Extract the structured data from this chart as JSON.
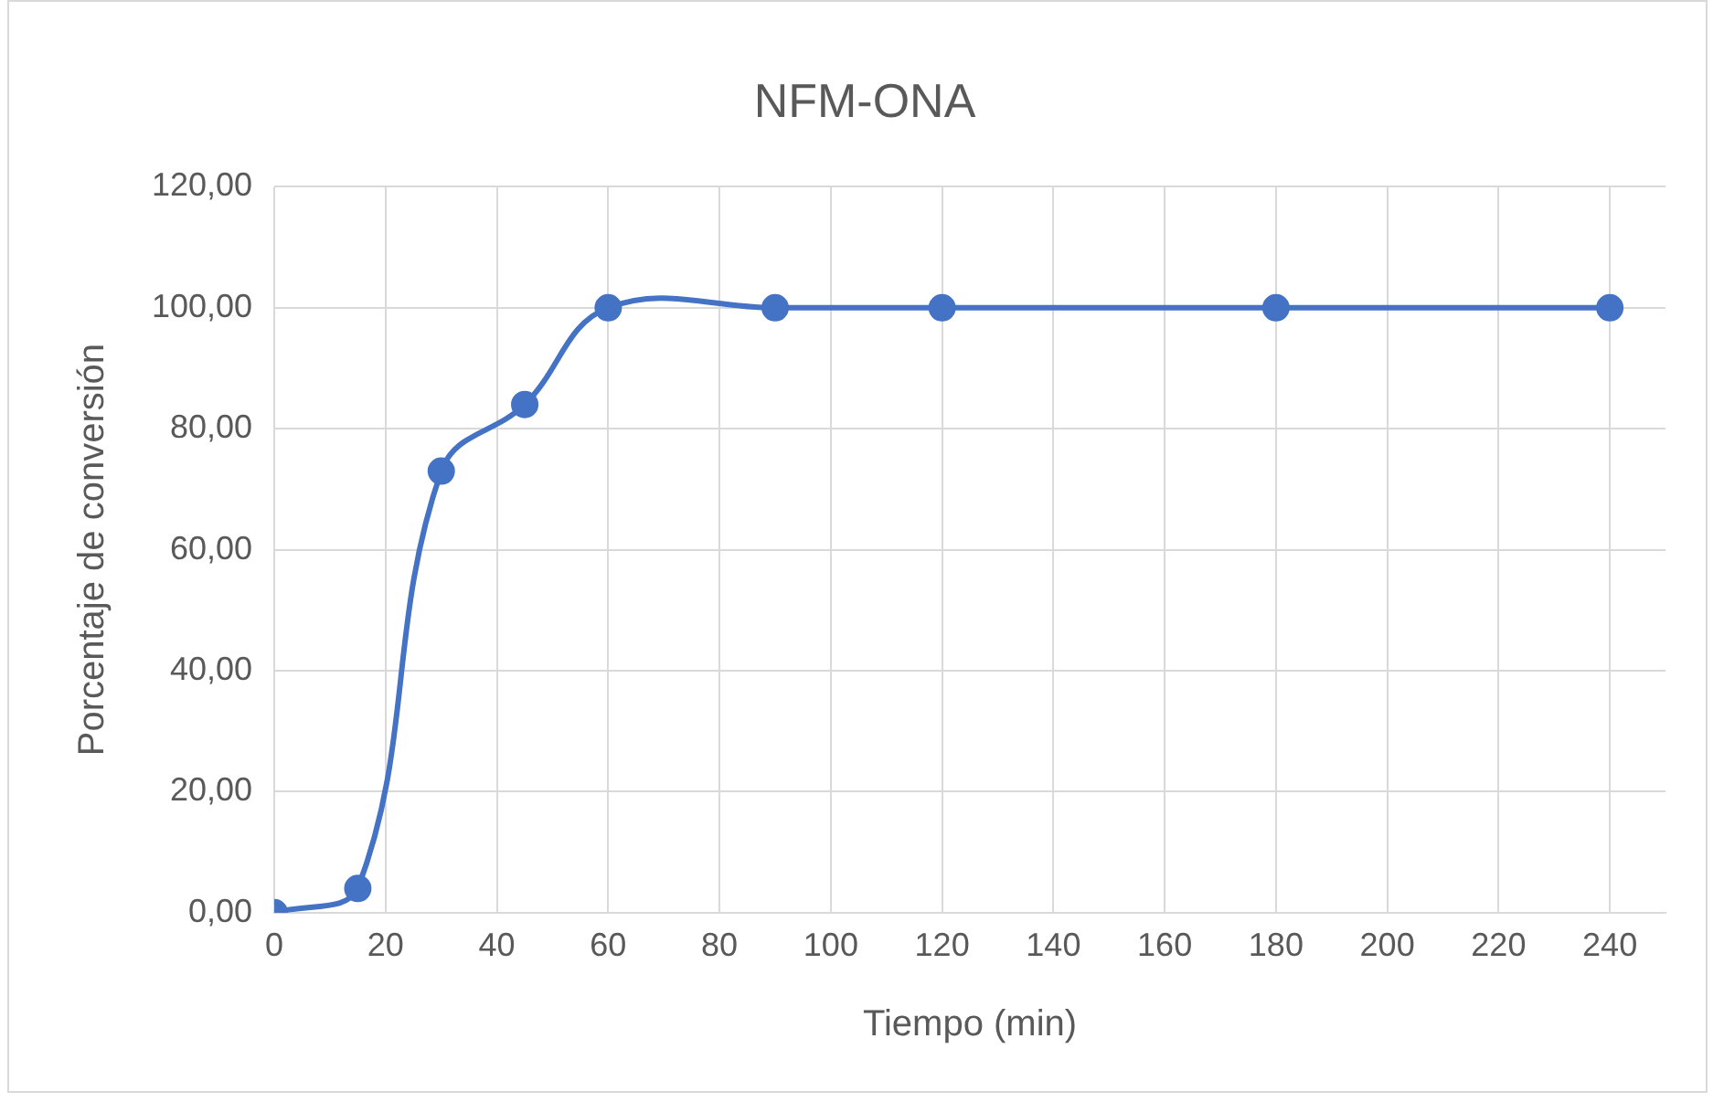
{
  "chart_data": {
    "type": "line",
    "title": "NFM-ONA",
    "xlabel": "Tiempo (min)",
    "ylabel": "Porcentaje de conversión",
    "x": [
      0,
      15,
      30,
      45,
      60,
      90,
      120,
      180,
      240
    ],
    "series": [
      {
        "color": "#4472c4",
        "values": [
          0,
          4,
          73,
          84,
          100,
          100,
          100,
          100,
          100
        ]
      }
    ],
    "xlim": [
      0,
      250
    ],
    "xticks": [
      0,
      20,
      40,
      60,
      80,
      100,
      120,
      140,
      160,
      180,
      200,
      220,
      240
    ],
    "ylim": [
      0,
      120
    ],
    "yticks": [
      {
        "value": 0,
        "label": "0,00"
      },
      {
        "value": 20,
        "label": "20,00"
      },
      {
        "value": 40,
        "label": "40,00"
      },
      {
        "value": 60,
        "label": "60,00"
      },
      {
        "value": 80,
        "label": "80,00"
      },
      {
        "value": 100,
        "label": "100,00"
      },
      {
        "value": 120,
        "label": "120,00"
      }
    ],
    "grid": true,
    "legend": false,
    "marker": "circle",
    "line_style": "solid"
  }
}
